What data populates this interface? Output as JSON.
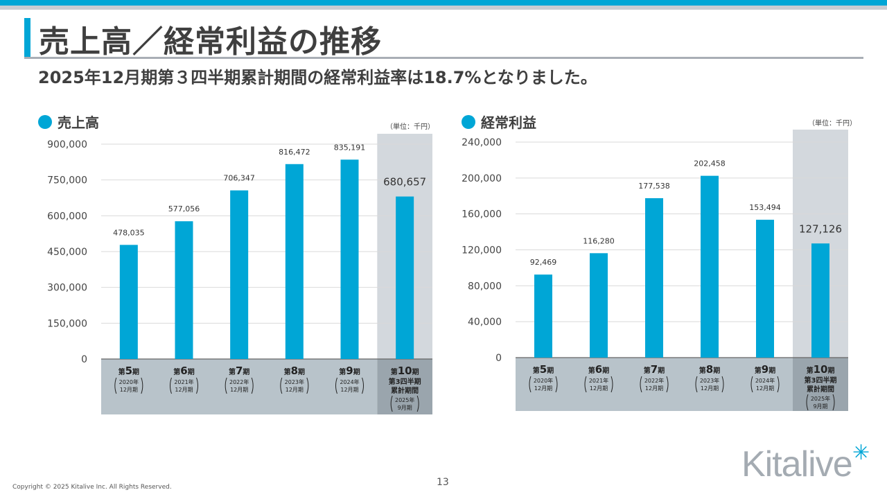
{
  "title": "売上高／経常利益の推移",
  "subtitle": "2025年12月期第３四半期累計期間の経常利益率は18.7%となりました。",
  "colors": {
    "accent": "#00a6d6",
    "bar": "#00a6d6",
    "axis_band": "#b8c3ca",
    "highlight": "#d3d8dd",
    "highlight_band": "#9aa5ad"
  },
  "chart_data": [
    {
      "type": "bar",
      "title": "売上高",
      "unit": "（単位：千円）",
      "categories": [
        {
          "num": "5",
          "lines": [
            "2020年",
            "12月期"
          ]
        },
        {
          "num": "6",
          "lines": [
            "2021年",
            "12月期"
          ]
        },
        {
          "num": "7",
          "lines": [
            "2022年",
            "12月期"
          ]
        },
        {
          "num": "8",
          "lines": [
            "2023年",
            "12月期"
          ]
        },
        {
          "num": "9",
          "lines": [
            "2024年",
            "12月期"
          ]
        },
        {
          "num": "10",
          "extra": [
            "第3四半期",
            "累計期間"
          ],
          "lines": [
            "2025年",
            "9月期"
          ]
        }
      ],
      "values": [
        478035,
        577056,
        706347,
        816472,
        835191,
        680657
      ],
      "value_labels": [
        "478,035",
        "577,056",
        "706,347",
        "816,472",
        "835,191",
        "680,657"
      ],
      "yticks": [
        0,
        150000,
        300000,
        450000,
        600000,
        750000,
        900000
      ],
      "ytick_labels": [
        "0",
        "150,000",
        "300,000",
        "450,000",
        "600,000",
        "750,000",
        "900,000"
      ],
      "ylim": [
        0,
        900000
      ],
      "highlight_index": 5,
      "grid": true
    },
    {
      "type": "bar",
      "title": "経常利益",
      "unit": "（単位：千円）",
      "categories": [
        {
          "num": "5",
          "lines": [
            "2020年",
            "12月期"
          ]
        },
        {
          "num": "6",
          "lines": [
            "2021年",
            "12月期"
          ]
        },
        {
          "num": "7",
          "lines": [
            "2022年",
            "12月期"
          ]
        },
        {
          "num": "8",
          "lines": [
            "2023年",
            "12月期"
          ]
        },
        {
          "num": "9",
          "lines": [
            "2024年",
            "12月期"
          ]
        },
        {
          "num": "10",
          "extra": [
            "第3四半期",
            "累計期間"
          ],
          "lines": [
            "2025年",
            "9月期"
          ]
        }
      ],
      "values": [
        92469,
        116280,
        177538,
        202458,
        153494,
        127126
      ],
      "value_labels": [
        "92,469",
        "116,280",
        "177,538",
        "202,458",
        "153,494",
        "127,126"
      ],
      "yticks": [
        0,
        40000,
        80000,
        120000,
        160000,
        200000,
        240000
      ],
      "ytick_labels": [
        "0",
        "40,000",
        "80,000",
        "120,000",
        "160,000",
        "200,000",
        "240,000"
      ],
      "ylim": [
        0,
        240000
      ],
      "highlight_index": 5,
      "grid": true
    }
  ],
  "period_prefix": "第",
  "period_suffix": "期",
  "copyright": "Copyright © 2025 Kitalive Inc. All Rights Reserved.",
  "page_number": "13",
  "logo": {
    "text": "Kitalive",
    "mark": "✳"
  }
}
